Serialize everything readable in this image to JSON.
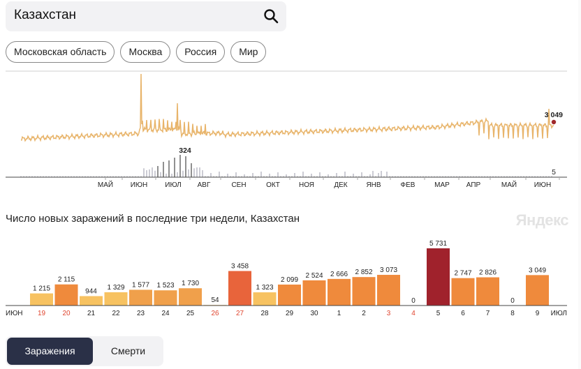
{
  "search": {
    "query": "Казахстан"
  },
  "chips": [
    "Московская область",
    "Москва",
    "Россия",
    "Мир"
  ],
  "top_chart": {
    "cases_last": "3 049",
    "deaths_peak": "324",
    "deaths_last": "5",
    "months": [
      "МАЙ",
      "ИЮН",
      "ИЮЛ",
      "АВГ",
      "СЕН",
      "ОКТ",
      "НОЯ",
      "ДЕК",
      "ЯНВ",
      "ФЕВ",
      "МАР",
      "АПР",
      "МАЙ",
      "ИЮН"
    ],
    "line_color": "#e8b46a",
    "marker_color": "#a0282a"
  },
  "section": {
    "title": "Число новых заражений в последние три недели, Казахстан",
    "brand": "Яндекс"
  },
  "chart_data": {
    "type": "bar",
    "title": "Число новых заражений в последние три недели, Казахстан",
    "categories": [
      "19",
      "20",
      "21",
      "22",
      "23",
      "24",
      "25",
      "26",
      "27",
      "28",
      "29",
      "30",
      "1",
      "2",
      "3",
      "4",
      "5",
      "6",
      "7",
      "8",
      "9"
    ],
    "values": [
      1215,
      2115,
      944,
      1329,
      1577,
      1523,
      1730,
      54,
      3458,
      1323,
      2099,
      2524,
      2666,
      2852,
      3073,
      0,
      5731,
      2747,
      2826,
      0,
      3049
    ],
    "value_labels": [
      "1 215",
      "2 115",
      "944",
      "1 329",
      "1 577",
      "1 523",
      "1 730",
      "54",
      "3 458",
      "1 323",
      "2 099",
      "2 524",
      "2 666",
      "2 852",
      "3 073",
      "0",
      "5 731",
      "2 747",
      "2 826",
      "0",
      "3 049"
    ],
    "weekend": [
      true,
      true,
      false,
      false,
      false,
      false,
      false,
      true,
      true,
      false,
      false,
      false,
      false,
      false,
      true,
      true,
      false,
      false,
      false,
      false,
      false
    ],
    "month_start": "ИЮН",
    "month_end": "ИЮЛ",
    "ylim": [
      0,
      5731
    ],
    "colors": [
      "#f7c261",
      "#f0a04b",
      "#ef8a3c",
      "#e8643b",
      "#a0222c"
    ]
  },
  "tabs": {
    "active": "Заражения",
    "inactive": "Смерти"
  }
}
